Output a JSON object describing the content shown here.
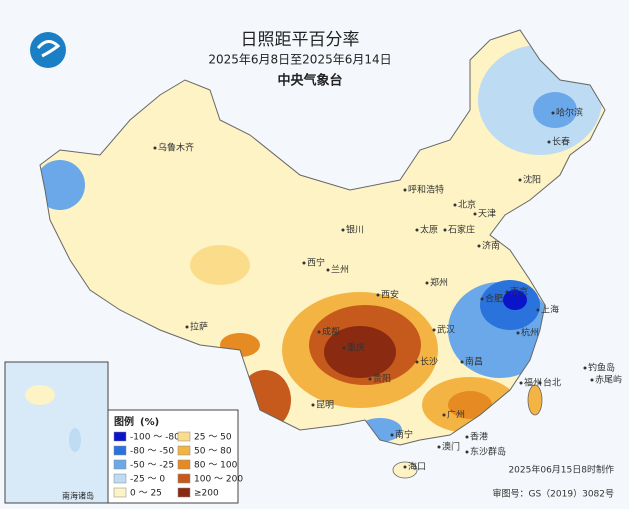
{
  "header": {
    "title": "日照距平百分率",
    "subtitle": "2025年6月8日至2025年6月14日",
    "agency": "中央气象台"
  },
  "cities": [
    "乌鲁木齐",
    "呼和浩特",
    "哈尔滨",
    "长春",
    "沈阳",
    "北京",
    "天津",
    "石家庄",
    "太原",
    "济南",
    "银川",
    "西宁",
    "兰州",
    "西安",
    "郑州",
    "合肥",
    "南京",
    "上海",
    "杭州",
    "武汉",
    "成都",
    "重庆",
    "长沙",
    "南昌",
    "福州",
    "台北",
    "贵阳",
    "昆明",
    "南宁",
    "广州",
    "香港",
    "澳门",
    "海口",
    "拉萨",
    "钓鱼岛",
    "赤尾屿",
    "东沙群岛"
  ],
  "legend": {
    "title": "图例",
    "unit": "(%)",
    "items": [
      {
        "label": "-100 ～ -80",
        "color": "#0a14c8"
      },
      {
        "label": "-80 ～ -50",
        "color": "#2a72dc"
      },
      {
        "label": "-50 ～ -25",
        "color": "#6aa8ea"
      },
      {
        "label": "-25 ～ 0",
        "color": "#bddcf4"
      },
      {
        "label": "0 ～ 25",
        "color": "#fdf3c4"
      },
      {
        "label": "25 ～ 50",
        "color": "#fbdc8a"
      },
      {
        "label": "50 ～ 80",
        "color": "#f3b444"
      },
      {
        "label": "80 ～ 100",
        "color": "#e68a22"
      },
      {
        "label": "100 ～ 200",
        "color": "#c65a1c"
      },
      {
        "label": "≥200",
        "color": "#8a2a10"
      }
    ]
  },
  "inset_label": "南海诸岛",
  "footer": {
    "made": "2025年06月15日8时制作",
    "review": "审图号：GS（2019）3082号"
  }
}
